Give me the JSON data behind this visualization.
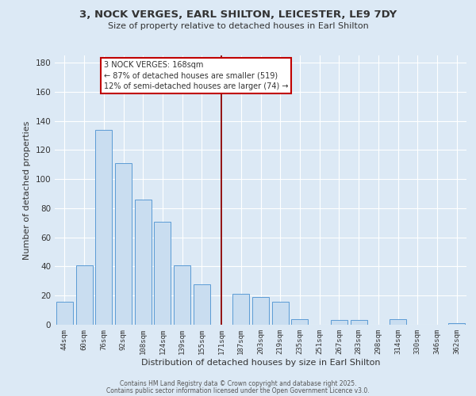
{
  "title": "3, NOCK VERGES, EARL SHILTON, LEICESTER, LE9 7DY",
  "subtitle": "Size of property relative to detached houses in Earl Shilton",
  "xlabel": "Distribution of detached houses by size in Earl Shilton",
  "ylabel": "Number of detached properties",
  "bar_labels": [
    "44sqm",
    "60sqm",
    "76sqm",
    "92sqm",
    "108sqm",
    "124sqm",
    "139sqm",
    "155sqm",
    "171sqm",
    "187sqm",
    "203sqm",
    "219sqm",
    "235sqm",
    "251sqm",
    "267sqm",
    "283sqm",
    "298sqm",
    "314sqm",
    "330sqm",
    "346sqm",
    "362sqm"
  ],
  "bar_values": [
    16,
    41,
    134,
    111,
    86,
    71,
    41,
    28,
    0,
    21,
    19,
    16,
    4,
    0,
    3,
    3,
    0,
    4,
    0,
    0,
    1
  ],
  "bar_color": "#c9ddf0",
  "bar_edge_color": "#5b9bd5",
  "vline_x": 8,
  "vline_color": "#8b0000",
  "annotation_title": "3 NOCK VERGES: 168sqm",
  "annotation_line1": "← 87% of detached houses are smaller (519)",
  "annotation_line2": "12% of semi-detached houses are larger (74) →",
  "annotation_box_color": "#ffffff",
  "annotation_box_edge": "#c00000",
  "ylim": [
    0,
    185
  ],
  "yticks": [
    0,
    20,
    40,
    60,
    80,
    100,
    120,
    140,
    160,
    180
  ],
  "background_color": "#dce9f5",
  "grid_color": "#ffffff",
  "footer_line1": "Contains HM Land Registry data © Crown copyright and database right 2025.",
  "footer_line2": "Contains public sector information licensed under the Open Government Licence v3.0."
}
